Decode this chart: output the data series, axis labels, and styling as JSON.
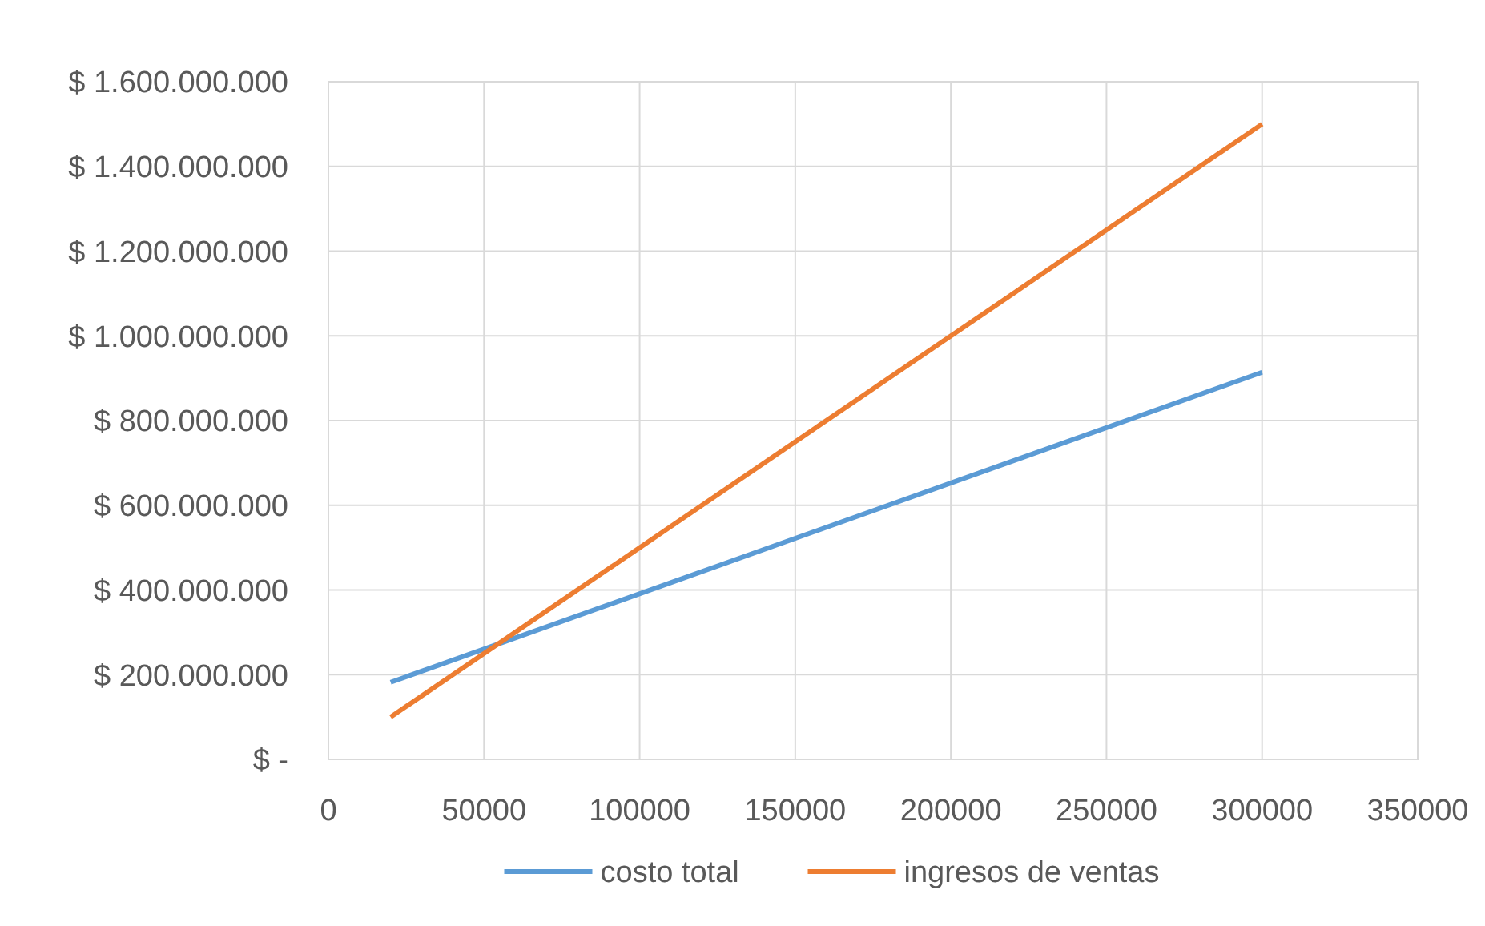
{
  "chart_data": {
    "type": "line",
    "x": [
      20000,
      300000
    ],
    "series": [
      {
        "name": "costo total",
        "color": "#5b9bd5",
        "values": [
          182000000,
          914000000
        ]
      },
      {
        "name": "ingresos de ventas",
        "color": "#ed7d31",
        "values": [
          100000000,
          1500000000
        ]
      }
    ],
    "xlim": [
      0,
      350000
    ],
    "xticks": [
      0,
      50000,
      100000,
      150000,
      200000,
      250000,
      300000,
      350000
    ],
    "ylim": [
      0,
      1600000000
    ],
    "yticks": [
      {
        "value": 0,
        "label": "$ -"
      },
      {
        "value": 200000000,
        "label": "$ 200.000.000"
      },
      {
        "value": 400000000,
        "label": "$ 400.000.000"
      },
      {
        "value": 600000000,
        "label": "$ 600.000.000"
      },
      {
        "value": 800000000,
        "label": "$ 800.000.000"
      },
      {
        "value": 1000000000,
        "label": "$ 1.000.000.000"
      },
      {
        "value": 1200000000,
        "label": "$ 1.200.000.000"
      },
      {
        "value": 1400000000,
        "label": "$ 1.400.000.000"
      },
      {
        "value": 1600000000,
        "label": "$ 1.600.000.000"
      }
    ],
    "grid": true,
    "legend": "bottom",
    "marker": "none",
    "line_style": "solid"
  }
}
